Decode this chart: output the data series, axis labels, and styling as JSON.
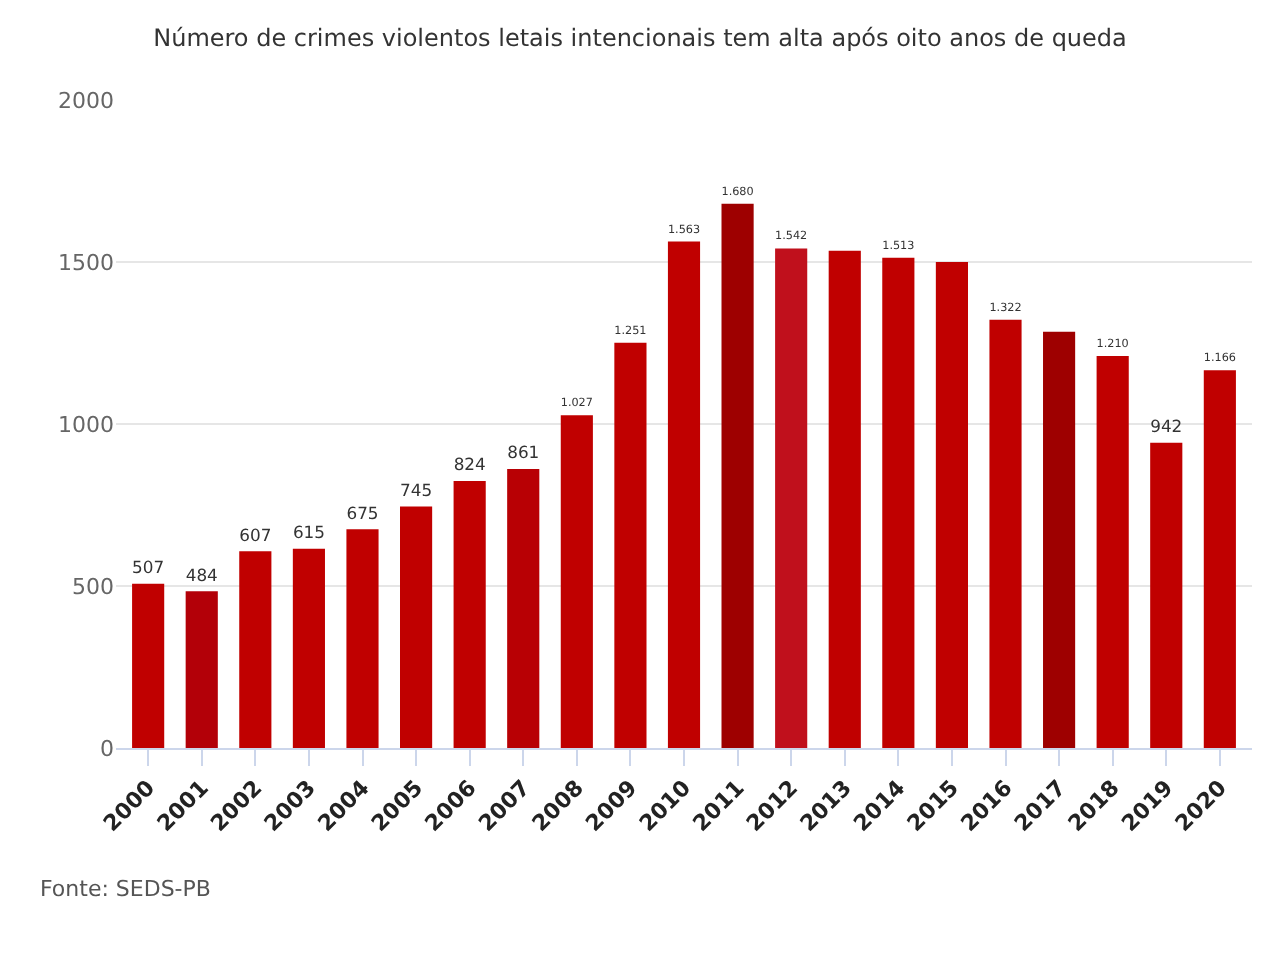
{
  "chart_data": {
    "type": "bar",
    "title": "Número de crimes violentos letais intencionais tem alta após oito anos de queda",
    "categories": [
      "2000",
      "2001",
      "2002",
      "2003",
      "2004",
      "2005",
      "2006",
      "2007",
      "2008",
      "2009",
      "2010",
      "2011",
      "2012",
      "2013",
      "2014",
      "2015",
      "2016",
      "2017",
      "2018",
      "2019",
      "2020"
    ],
    "values": [
      507,
      484,
      607,
      615,
      675,
      745,
      824,
      861,
      1027,
      1251,
      1563,
      1680,
      1542,
      1535,
      1513,
      1500,
      1322,
      1285,
      1210,
      942,
      1166
    ],
    "value_labels": [
      "507",
      "484",
      "607",
      "615",
      "675",
      "745",
      "824",
      "861",
      "1.027",
      "1.251",
      "1.563",
      "1.680",
      "1.542",
      null,
      "1.513",
      null,
      "1.322",
      null,
      "1.210",
      "942",
      "1.166"
    ],
    "colors": [
      "#c00000",
      "#b30008",
      "#c00000",
      "#c00000",
      "#c00000",
      "#c00000",
      "#c00000",
      "#b80004",
      "#c00000",
      "#c00000",
      "#c00000",
      "#9e0000",
      "#c0101c",
      "#c00000",
      "#c00000",
      "#c00000",
      "#c00000",
      "#9e0000",
      "#c00000",
      "#c00000",
      "#c00000"
    ],
    "ylim": [
      0,
      2000
    ],
    "yticks": [
      0,
      500,
      1000,
      1500,
      2000
    ],
    "grid": "y",
    "annotations": [
      "Fonte: SEDS-PB"
    ]
  }
}
